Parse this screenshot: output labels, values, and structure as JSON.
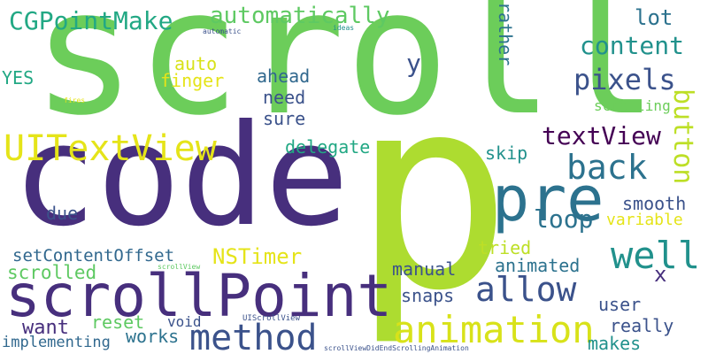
{
  "words": [
    {
      "text": "scroll",
      "color": "#6ccd5a"
    },
    {
      "text": "p",
      "color": "#addc30"
    },
    {
      "text": "code",
      "color": "#472f7d"
    },
    {
      "text": "scrollPoint",
      "color": "#472f7d"
    },
    {
      "text": "pre",
      "color": "#2c728e"
    },
    {
      "text": "method",
      "color": "#3b528b"
    },
    {
      "text": "animation",
      "color": "#d8e219"
    },
    {
      "text": "UITextView",
      "color": "#e5e419"
    },
    {
      "text": "back",
      "color": "#2c728e"
    },
    {
      "text": "well",
      "color": "#21918c"
    },
    {
      "text": "allow",
      "color": "#3b528b"
    },
    {
      "text": "CGPointMake",
      "color": "#22a884"
    },
    {
      "text": "automatically",
      "color": "#5ec962"
    },
    {
      "text": "content",
      "color": "#21918c"
    },
    {
      "text": "pixels",
      "color": "#3b528b"
    },
    {
      "text": "textView",
      "color": "#440154"
    },
    {
      "text": "button",
      "color": "#bddf26"
    },
    {
      "text": "NSTimer",
      "color": "#e5e419"
    },
    {
      "text": "loop",
      "color": "#2c728e"
    },
    {
      "text": "setContentOffset",
      "color": "#31688e"
    },
    {
      "text": "scrolled",
      "color": "#5ec962"
    },
    {
      "text": "lot",
      "color": "#2c728e"
    },
    {
      "text": "y",
      "color": "#3b528b"
    },
    {
      "text": "auto",
      "color": "#d8e219"
    },
    {
      "text": "finger",
      "color": "#e5e419"
    },
    {
      "text": "YES",
      "color": "#22a884"
    },
    {
      "text": "ahead",
      "color": "#31688e"
    },
    {
      "text": "need",
      "color": "#3b528b"
    },
    {
      "text": "sure",
      "color": "#3b528b"
    },
    {
      "text": "rather",
      "color": "#2c728e"
    },
    {
      "text": "scrolling",
      "color": "#6ccd5a"
    },
    {
      "text": "delegate",
      "color": "#22a884"
    },
    {
      "text": "skip",
      "color": "#21918c"
    },
    {
      "text": "smooth",
      "color": "#3b528b"
    },
    {
      "text": "variable",
      "color": "#e5e419"
    },
    {
      "text": "due",
      "color": "#3b528b"
    },
    {
      "text": "tried",
      "color": "#bddf26"
    },
    {
      "text": "animated",
      "color": "#2c728e"
    },
    {
      "text": "manual",
      "color": "#3b528b"
    },
    {
      "text": "x",
      "color": "#472f7d"
    },
    {
      "text": "snaps",
      "color": "#3b528b"
    },
    {
      "text": "user",
      "color": "#3b528b"
    },
    {
      "text": "really",
      "color": "#3b528b"
    },
    {
      "text": "reset",
      "color": "#5ec962"
    },
    {
      "text": "works",
      "color": "#2c728e"
    },
    {
      "text": "want",
      "color": "#472f7d"
    },
    {
      "text": "void",
      "color": "#3b528b"
    },
    {
      "text": "makes",
      "color": "#21918c"
    },
    {
      "text": "implementing",
      "color": "#31688e"
    },
    {
      "text": "automatic",
      "color": "#3b528b"
    },
    {
      "text": "ideas",
      "color": "#21918c"
    },
    {
      "text": "fires",
      "color": "#e5e419"
    },
    {
      "text": "scrollView",
      "color": "#5ec962"
    },
    {
      "text": "UIScrollView",
      "color": "#3b528b"
    },
    {
      "text": "scrollViewDidEndScrollingAnimation",
      "color": "#3b528b"
    }
  ]
}
